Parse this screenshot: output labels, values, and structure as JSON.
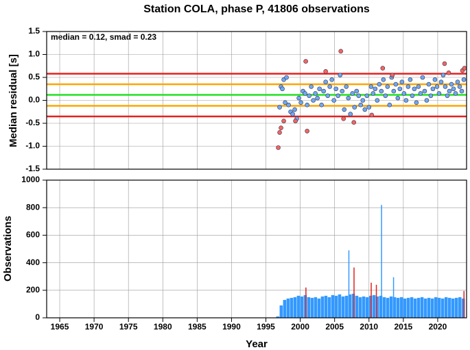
{
  "chart_data": [
    {
      "type": "scatter",
      "title": "Station COLA, phase P, 41806 observations",
      "y_label": "Median residual [s]",
      "annotation": "median = 0.12, smad = 0.23",
      "xlim": [
        1963.1,
        2024.2
      ],
      "ylim": [
        -1.5,
        1.5
      ],
      "yticks": [
        {
          "value": -1.5,
          "label": "-1.5"
        },
        {
          "value": -1,
          "label": "-1.0"
        },
        -0.5,
        {
          "value": 0,
          "label": "0.0"
        },
        0.5,
        {
          "value": 1,
          "label": "1.0"
        },
        1.5
      ],
      "grid": true,
      "reference_lines": [
        {
          "value": 0.58,
          "color": "#e52020"
        },
        {
          "value": 0.35,
          "color": "#ffa500"
        },
        {
          "value": 0.12,
          "color": "#22e022"
        },
        {
          "value": -0.12,
          "color": "#ffa500"
        },
        {
          "value": -0.35,
          "color": "#e52020"
        }
      ],
      "series": [
        {
          "color": "#6fa8f5",
          "x": [
            1997.0,
            1997.2,
            1997.4,
            1997.6,
            1997.8,
            1998.0,
            1998.3,
            1998.6,
            1998.9,
            1999.2,
            1999.5,
            1999.8,
            2000.1,
            2000.4,
            2000.7,
            2001.0,
            2001.3,
            2001.6,
            2001.9,
            2002.2,
            2002.5,
            2002.8,
            2003.1,
            2003.4,
            2003.7,
            2004.0,
            2004.3,
            2004.6,
            2004.9,
            2005.2,
            2005.5,
            2005.8,
            2006.1,
            2006.4,
            2006.7,
            2007.0,
            2007.3,
            2007.6,
            2007.9,
            2008.2,
            2008.5,
            2008.8,
            2009.1,
            2009.4,
            2009.7,
            2010.0,
            2010.3,
            2010.6,
            2010.9,
            2011.2,
            2011.5,
            2011.8,
            2012.1,
            2012.4,
            2012.7,
            2013.0,
            2013.3,
            2013.6,
            2013.9,
            2014.2,
            2014.5,
            2014.8,
            2015.1,
            2015.4,
            2015.7,
            2016.0,
            2016.3,
            2016.6,
            2016.9,
            2017.2,
            2017.5,
            2017.8,
            2018.1,
            2018.4,
            2018.7,
            2019.0,
            2019.3,
            2019.6,
            2019.9,
            2020.2,
            2020.5,
            2020.8,
            2021.1,
            2021.4,
            2021.7,
            2022.0,
            2022.3,
            2022.6,
            2022.9,
            2023.2,
            2023.5,
            2023.8
          ],
          "values": [
            -0.15,
            0.3,
            0.25,
            0.45,
            -0.05,
            0.5,
            -0.1,
            -0.25,
            -0.3,
            -0.2,
            -0.4,
            0.05,
            -0.05,
            0.2,
            0.15,
            -0.1,
            0.1,
            0.3,
            0.0,
            0.15,
            0.05,
            0.25,
            -0.1,
            0.2,
            0.4,
            0.1,
            0.3,
            0.45,
            0.0,
            0.25,
            0.1,
            0.55,
            0.2,
            -0.2,
            0.3,
            0.05,
            -0.3,
            0.15,
            -0.15,
            0.2,
            0.1,
            -0.1,
            0.0,
            -0.2,
            0.1,
            -0.15,
            0.3,
            0.15,
            0.25,
            0.0,
            0.35,
            0.2,
            0.45,
            0.1,
            0.3,
            -0.1,
            0.5,
            0.2,
            0.35,
            0.05,
            0.25,
            0.4,
            0.15,
            0.0,
            0.3,
            0.45,
            0.1,
            0.25,
            -0.05,
            0.3,
            0.15,
            0.5,
            0.2,
            0.0,
            0.35,
            0.1,
            0.25,
            0.45,
            0.3,
            0.15,
            0.4,
            0.55,
            0.3,
            0.1,
            0.2,
            0.35,
            0.25,
            0.15,
            0.4,
            0.3,
            0.2,
            0.45
          ]
        },
        {
          "color": "#f46464",
          "x": [
            1996.8,
            1997.0,
            1997.2,
            1997.6,
            1999.3,
            2000.8,
            2001.0,
            2003.7,
            2005.9,
            2006.3,
            2007.8,
            2010.4,
            2012.0,
            2013.4,
            2021.0,
            2021.6,
            2023.6,
            2023.9
          ],
          "values": [
            -1.03,
            -0.7,
            -0.6,
            -0.45,
            -0.45,
            0.85,
            -0.67,
            0.63,
            1.07,
            -0.4,
            -0.48,
            -0.32,
            0.7,
            0.55,
            0.8,
            0.6,
            0.65,
            0.7
          ]
        }
      ]
    },
    {
      "type": "bar",
      "x_label": "Year",
      "y_label": "Observations",
      "xlim": [
        1963.1,
        2024.2
      ],
      "xticks": [
        1965,
        1970,
        1975,
        1980,
        1985,
        1990,
        1995,
        2000,
        2005,
        2010,
        2015,
        2020
      ],
      "ylim": [
        0,
        1000
      ],
      "yticks": [
        0,
        200,
        400,
        600,
        800,
        1000
      ],
      "grid": true,
      "series": [
        {
          "color": "#3399ff",
          "x": [
            1996.5,
            1997.0,
            1997.5,
            1998.0,
            1998.5,
            1999.0,
            1999.5,
            2000.0,
            2000.5,
            2001.0,
            2001.5,
            2002.0,
            2002.5,
            2003.0,
            2003.5,
            2004.0,
            2004.5,
            2005.0,
            2005.5,
            2006.0,
            2006.5,
            2007.0,
            2007.5,
            2008.0,
            2008.5,
            2009.0,
            2009.5,
            2010.0,
            2010.5,
            2011.0,
            2011.5,
            2012.0,
            2012.5,
            2013.0,
            2013.5,
            2014.0,
            2014.5,
            2015.0,
            2015.5,
            2016.0,
            2016.5,
            2017.0,
            2017.5,
            2018.0,
            2018.5,
            2019.0,
            2019.5,
            2020.0,
            2020.5,
            2021.0,
            2021.5,
            2022.0,
            2022.5,
            2023.0,
            2023.5
          ],
          "values": [
            10,
            90,
            130,
            140,
            145,
            150,
            160,
            155,
            165,
            150,
            145,
            150,
            140,
            155,
            160,
            150,
            165,
            160,
            170,
            155,
            160,
            170,
            175,
            160,
            150,
            155,
            150,
            160,
            165,
            155,
            160,
            150,
            145,
            155,
            150,
            145,
            150,
            140,
            145,
            150,
            140,
            145,
            150,
            140,
            145,
            140,
            150,
            145,
            140,
            150,
            145,
            140,
            145,
            150,
            140
          ]
        },
        {
          "color": "#3399ff",
          "x": [
            2007.0,
            2011.75,
            2013.5
          ],
          "values": [
            490,
            820,
            295
          ]
        },
        {
          "color": "#e02020",
          "x": [
            2000.75,
            2007.75,
            2010.25,
            2011.0,
            2023.75
          ],
          "values": [
            220,
            365,
            255,
            240,
            195
          ]
        }
      ]
    }
  ]
}
